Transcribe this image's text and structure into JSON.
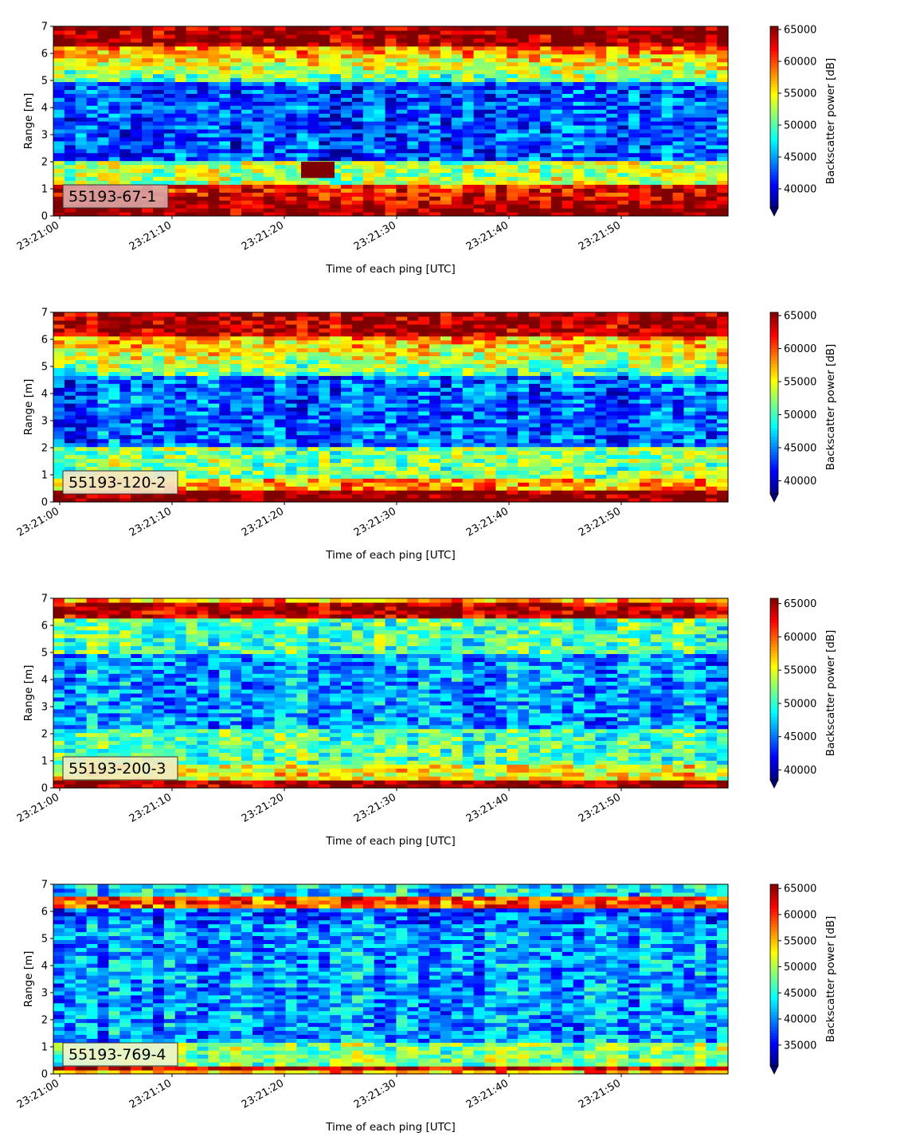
{
  "colors": {
    "jet": [
      "#00007f",
      "#0000ff",
      "#007fff",
      "#00ffff",
      "#7fff7f",
      "#ffff00",
      "#ff7f00",
      "#ff0000",
      "#7f0000"
    ],
    "tag_face": "#f2f2f2",
    "axis": "#000000"
  },
  "chart_data": [
    {
      "type": "heatmap",
      "tag": "55193-67-1",
      "tag_tint": "#d9a3a3",
      "xlabel": "Time of each ping [UTC]",
      "ylabel": "Range [m]",
      "xticks": [
        "23:21:00",
        "23:21:10",
        "23:21:20",
        "23:21:30",
        "23:21:40",
        "23:21:50"
      ],
      "xlim_seconds": [
        0,
        60
      ],
      "yticks": [
        "0",
        "1",
        "2",
        "3",
        "4",
        "5",
        "6",
        "7"
      ],
      "ylim": [
        0,
        7
      ],
      "colorbar": {
        "label": "Backscatter power [dB]",
        "ticks": [
          "40000",
          "45000",
          "50000",
          "55000",
          "60000",
          "65000"
        ],
        "tick_values": [
          40000,
          45000,
          50000,
          55000,
          60000,
          65000
        ],
        "range": [
          37000,
          65500
        ],
        "extend": "min"
      }
    },
    {
      "type": "heatmap",
      "tag": "55193-120-2",
      "tag_tint": "#f2e6c8",
      "xlabel": "Time of each ping [UTC]",
      "ylabel": "Range [m]",
      "xticks": [
        "23:21:00",
        "23:21:10",
        "23:21:20",
        "23:21:30",
        "23:21:40",
        "23:21:50"
      ],
      "xlim_seconds": [
        0,
        60
      ],
      "yticks": [
        "0",
        "1",
        "2",
        "3",
        "4",
        "5",
        "6",
        "7"
      ],
      "ylim": [
        0,
        7
      ],
      "colorbar": {
        "label": "Backscatter power [dB]",
        "ticks": [
          "40000",
          "45000",
          "50000",
          "55000",
          "60000",
          "65000"
        ],
        "tick_values": [
          40000,
          45000,
          50000,
          55000,
          60000,
          65000
        ],
        "range": [
          38000,
          65500
        ],
        "extend": "min"
      }
    },
    {
      "type": "heatmap",
      "tag": "55193-200-3",
      "tag_tint": "#f2ecc0",
      "xlabel": "Time of each ping [UTC]",
      "ylabel": "Range [m]",
      "xticks": [
        "23:21:00",
        "23:21:10",
        "23:21:20",
        "23:21:30",
        "23:21:40",
        "23:21:50"
      ],
      "xlim_seconds": [
        0,
        60
      ],
      "yticks": [
        "0",
        "1",
        "2",
        "3",
        "4",
        "5",
        "6",
        "7"
      ],
      "ylim": [
        0,
        7
      ],
      "colorbar": {
        "label": "Backscatter power [dB]",
        "ticks": [
          "40000",
          "45000",
          "50000",
          "55000",
          "60000",
          "65000"
        ],
        "tick_values": [
          40000,
          45000,
          50000,
          55000,
          60000,
          65000
        ],
        "range": [
          38500,
          65800
        ],
        "extend": "min"
      }
    },
    {
      "type": "heatmap",
      "tag": "55193-769-4",
      "tag_tint": "#eef3cc",
      "xlabel": "Time of each ping [UTC]",
      "ylabel": "Range [m]",
      "xticks": [
        "23:21:00",
        "23:21:10",
        "23:21:20",
        "23:21:30",
        "23:21:40",
        "23:21:50"
      ],
      "xlim_seconds": [
        0,
        60
      ],
      "yticks": [
        "0",
        "1",
        "2",
        "3",
        "4",
        "5",
        "6",
        "7"
      ],
      "ylim": [
        0,
        7
      ],
      "colorbar": {
        "label": "Backscatter power [dB]",
        "ticks": [
          "35000",
          "40000",
          "45000",
          "50000",
          "55000",
          "60000",
          "65000"
        ],
        "tick_values": [
          35000,
          40000,
          45000,
          50000,
          55000,
          60000,
          65000
        ],
        "range": [
          31000,
          65800
        ],
        "extend": "min"
      }
    }
  ]
}
